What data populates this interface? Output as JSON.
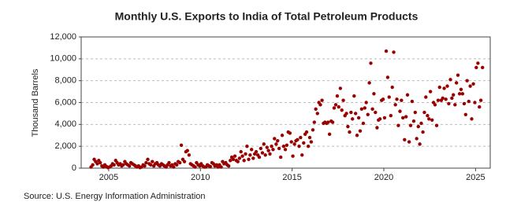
{
  "chart_data": {
    "type": "scatter",
    "title": "Monthly U.S. Exports to India of Total Petroleum Products",
    "y_label": "Thousand Barrels",
    "source": "Source: U.S. Energy Information Administration",
    "color": "#990000",
    "grid": true,
    "xlim": [
      2003.5,
      2025.8
    ],
    "xticks": [
      2005,
      2010,
      2015,
      2020,
      2025
    ],
    "ylim": [
      0,
      12000
    ],
    "yticks": [
      0,
      {
        "value": 2000,
        "label": "2,000"
      },
      {
        "value": 4000,
        "label": "4,000"
      },
      {
        "value": 6000,
        "label": "6,000"
      },
      {
        "value": 8000,
        "label": "8,000"
      },
      {
        "value": 10000,
        "label": "10,000"
      },
      {
        "value": 12000,
        "label": "12,000"
      }
    ],
    "x": [
      2004.04,
      2004.13,
      2004.21,
      2004.29,
      2004.38,
      2004.46,
      2004.54,
      2004.63,
      2004.71,
      2004.79,
      2004.88,
      2004.96,
      2005.04,
      2005.13,
      2005.21,
      2005.29,
      2005.38,
      2005.46,
      2005.54,
      2005.63,
      2005.71,
      2005.79,
      2005.88,
      2005.96,
      2006.04,
      2006.13,
      2006.21,
      2006.29,
      2006.38,
      2006.46,
      2006.54,
      2006.63,
      2006.71,
      2006.79,
      2006.88,
      2006.96,
      2007.04,
      2007.13,
      2007.21,
      2007.29,
      2007.38,
      2007.46,
      2007.54,
      2007.63,
      2007.71,
      2007.79,
      2007.88,
      2007.96,
      2008.04,
      2008.13,
      2008.21,
      2008.29,
      2008.38,
      2008.46,
      2008.54,
      2008.63,
      2008.71,
      2008.79,
      2008.88,
      2008.96,
      2009.04,
      2009.13,
      2009.21,
      2009.29,
      2009.38,
      2009.46,
      2009.54,
      2009.63,
      2009.71,
      2009.79,
      2009.88,
      2009.96,
      2010.04,
      2010.13,
      2010.21,
      2010.29,
      2010.38,
      2010.46,
      2010.54,
      2010.63,
      2010.71,
      2010.79,
      2010.88,
      2010.96,
      2011.04,
      2011.13,
      2011.21,
      2011.29,
      2011.38,
      2011.46,
      2011.54,
      2011.63,
      2011.71,
      2011.79,
      2011.88,
      2011.96,
      2012.04,
      2012.13,
      2012.21,
      2012.29,
      2012.38,
      2012.46,
      2012.54,
      2012.63,
      2012.71,
      2012.79,
      2012.88,
      2012.96,
      2013.04,
      2013.13,
      2013.21,
      2013.29,
      2013.38,
      2013.46,
      2013.54,
      2013.63,
      2013.71,
      2013.79,
      2013.88,
      2013.96,
      2014.04,
      2014.13,
      2014.21,
      2014.29,
      2014.38,
      2014.46,
      2014.54,
      2014.63,
      2014.71,
      2014.79,
      2014.88,
      2014.96,
      2015.04,
      2015.13,
      2015.21,
      2015.29,
      2015.38,
      2015.46,
      2015.54,
      2015.63,
      2015.71,
      2015.79,
      2015.88,
      2015.96,
      2016.04,
      2016.13,
      2016.21,
      2016.29,
      2016.38,
      2016.46,
      2016.54,
      2016.63,
      2016.71,
      2016.79,
      2016.88,
      2016.96,
      2017.04,
      2017.13,
      2017.21,
      2017.29,
      2017.38,
      2017.46,
      2017.54,
      2017.63,
      2017.71,
      2017.79,
      2017.88,
      2017.96,
      2018.04,
      2018.13,
      2018.21,
      2018.29,
      2018.38,
      2018.46,
      2018.54,
      2018.63,
      2018.71,
      2018.79,
      2018.88,
      2018.96,
      2019.04,
      2019.13,
      2019.21,
      2019.29,
      2019.38,
      2019.46,
      2019.54,
      2019.63,
      2019.71,
      2019.79,
      2019.88,
      2019.96,
      2020.04,
      2020.13,
      2020.21,
      2020.29,
      2020.38,
      2020.46,
      2020.54,
      2020.63,
      2020.71,
      2020.79,
      2020.88,
      2020.96,
      2021.04,
      2021.13,
      2021.21,
      2021.29,
      2021.38,
      2021.46,
      2021.54,
      2021.63,
      2021.71,
      2021.79,
      2021.88,
      2021.96,
      2022.04,
      2022.13,
      2022.21,
      2022.29,
      2022.38,
      2022.46,
      2022.54,
      2022.63,
      2022.71,
      2022.79,
      2022.88,
      2022.96,
      2023.04,
      2023.13,
      2023.21,
      2023.29,
      2023.38,
      2023.46,
      2023.54,
      2023.63,
      2023.71,
      2023.79,
      2023.88,
      2023.96,
      2024.04,
      2024.13,
      2024.21,
      2024.29,
      2024.38,
      2024.46,
      2024.54,
      2024.63,
      2024.71,
      2024.79,
      2024.88,
      2024.96,
      2025.04,
      2025.13,
      2025.21,
      2025.29,
      2025.38
    ],
    "values": [
      100,
      300,
      800,
      600,
      400,
      700,
      500,
      200,
      100,
      300,
      150,
      50,
      100,
      200,
      400,
      300,
      700,
      500,
      300,
      400,
      200,
      300,
      600,
      400,
      300,
      200,
      500,
      400,
      300,
      200,
      100,
      200,
      50,
      100,
      300,
      200,
      500,
      800,
      400,
      300,
      600,
      200,
      400,
      500,
      300,
      200,
      400,
      300,
      200,
      100,
      300,
      500,
      200,
      300,
      100,
      400,
      300,
      600,
      500,
      2100,
      800,
      600,
      1500,
      1600,
      1200,
      400,
      300,
      200,
      100,
      500,
      300,
      200,
      400,
      200,
      100,
      100,
      300,
      200,
      150,
      500,
      400,
      200,
      300,
      100,
      300,
      100,
      600,
      400,
      500,
      300,
      200,
      700,
      1000,
      800,
      1100,
      700,
      600,
      900,
      1500,
      1100,
      700,
      1300,
      2000,
      800,
      1200,
      1700,
      900,
      1300,
      1500,
      1200,
      1000,
      1800,
      1400,
      2200,
      1200,
      1900,
      1600,
      1300,
      2000,
      1700,
      2700,
      2200,
      2500,
      1800,
      1000,
      3000,
      2000,
      1700,
      2100,
      3300,
      3200,
      2400,
      1100,
      2200,
      2500,
      2600,
      2000,
      2800,
      1200,
      2300,
      3100,
      3300,
      2000,
      2800,
      2400,
      3500,
      4200,
      5400,
      5000,
      6000,
      5800,
      6200,
      4100,
      4200,
      4100,
      4200,
      3100,
      4300,
      4200,
      5500,
      5800,
      6600,
      5600,
      7300,
      5300,
      6200,
      4800,
      5000,
      3800,
      3300,
      5100,
      4500,
      6600,
      5000,
      3000,
      4600,
      3400,
      5400,
      4100,
      5500,
      6000,
      4900,
      7800,
      9600,
      5400,
      6800,
      5100,
      3700,
      4400,
      4500,
      6200,
      6300,
      4600,
      10700,
      8300,
      6500,
      4800,
      7400,
      10600,
      5800,
      6300,
      3900,
      5200,
      6200,
      4600,
      2600,
      4700,
      6700,
      2400,
      3900,
      6100,
      4300,
      5100,
      2700,
      3800,
      2200,
      4100,
      3300,
      5100,
      6500,
      4800,
      4500,
      7000,
      4400,
      6000,
      5800,
      3900,
      6200,
      7400,
      6200,
      6400,
      7300,
      6300,
      7500,
      5900,
      8100,
      6400,
      6700,
      5800,
      7800,
      8500,
      6800,
      7200,
      6800,
      5900,
      4900,
      8000,
      6100,
      7500,
      4500,
      7700,
      6000,
      9200,
      9600,
      5600,
      6200,
      9200
    ]
  }
}
